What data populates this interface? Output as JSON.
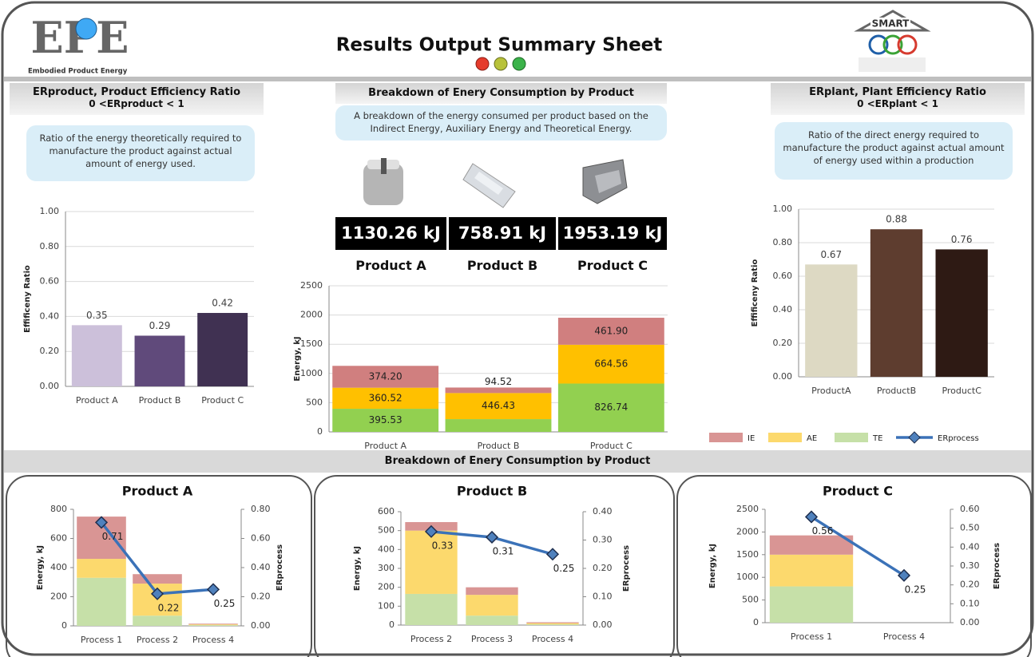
{
  "header": {
    "title": "Results Output Summary Sheet",
    "logo_left": "EPE",
    "logo_left_caption": "Embodied Product Energy",
    "logo_right": "SMART"
  },
  "panels": {
    "erproduct": {
      "heading": "ERproduct, Product Efficiency Ratio",
      "range": "0 <ERproduct < 1",
      "description": "Ratio of the energy theoretically required to manufacture the product against actual amount of energy used."
    },
    "breakdown": {
      "heading": "Breakdown of Enery Consumption by Product",
      "description": "A breakdown of the energy consumed per product based on the Indirect Energy, Auxiliary Energy and Theoretical Energy.",
      "totals": [
        {
          "label": "1130.26 kJ",
          "product": "Product A"
        },
        {
          "label": "758.91 kJ",
          "product": "Product B"
        },
        {
          "label": "1953.19 kJ",
          "product": "Product C"
        }
      ]
    },
    "erplant": {
      "heading": "ERplant, Plant Efficiency Ratio",
      "range": "0 <ERplant < 1",
      "description": "Ratio of the direct energy required to manufacture the product against actual amount of energy used within a production"
    },
    "bottom_heading": "Breakdown of Enery Consumption by Product"
  },
  "chart_data": [
    {
      "type": "bar",
      "y_label": "Effificeny Ratio",
      "categories": [
        "Product A",
        "Product B",
        "Product C"
      ],
      "values": [
        0.35,
        0.29,
        0.42
      ],
      "colors": [
        "#ccc0da",
        "#604a7b",
        "#403152"
      ],
      "grid": true,
      "ylim": [
        0,
        1
      ],
      "yticks": [
        {
          "value": 0,
          "label": "0.00"
        },
        {
          "value": 0.2,
          "label": "0.20"
        },
        {
          "value": 0.4,
          "label": "0.40"
        },
        {
          "value": 0.6,
          "label": "0.60"
        },
        {
          "value": 0.8,
          "label": "0.80"
        },
        {
          "value": 1,
          "label": "1.00"
        }
      ]
    },
    {
      "type": "stacked_bar",
      "y_label": "Energy, kJ",
      "categories": [
        "Product A",
        "Product B",
        "Product C"
      ],
      "grid": true,
      "ylim": [
        0,
        2500
      ],
      "yticks": [
        0,
        500,
        1000,
        1500,
        2000,
        2500
      ],
      "series": [
        {
          "name": "TE",
          "color": "#92d050",
          "values": [
            395.53,
            217.96,
            826.74
          ]
        },
        {
          "name": "AE",
          "color": "#ffc000",
          "values": [
            360.52,
            446.43,
            664.56
          ]
        },
        {
          "name": "IE",
          "color": "#d07f7f",
          "values": [
            374.2,
            94.52,
            461.9
          ],
          "value_labels": [
            "374.20",
            "94.52",
            "461.90"
          ]
        }
      ]
    },
    {
      "type": "bar",
      "y_label": "Effificeny Ratio",
      "categories": [
        "ProductA",
        "ProductB",
        "ProductC"
      ],
      "values": [
        0.67,
        0.88,
        0.76
      ],
      "colors": [
        "#ddd9c3",
        "#5e3d2f",
        "#2e1a14"
      ],
      "grid": true,
      "ylim": [
        0,
        1
      ],
      "yticks": [
        {
          "value": 0,
          "label": "0.00"
        },
        {
          "value": 0.2,
          "label": "0.20"
        },
        {
          "value": 0.4,
          "label": "0.40"
        },
        {
          "value": 0.6,
          "label": "0.60"
        },
        {
          "value": 0.8,
          "label": "0.80"
        },
        {
          "value": 1,
          "label": "1.00"
        }
      ]
    },
    {
      "type": "combo",
      "title": "Product A",
      "y_label": "Energy, kJ",
      "y2_label": "ERprocess",
      "categories": [
        "Process 1",
        "Process 2",
        "Process 4"
      ],
      "grid": false,
      "ylim": [
        0,
        800
      ],
      "yticks": [
        0,
        200,
        400,
        600,
        800
      ],
      "y2lim": [
        0,
        0.8
      ],
      "y2ticks": [
        {
          "value": 0,
          "label": "0.00"
        },
        {
          "value": 0.2,
          "label": "0.20"
        },
        {
          "value": 0.4,
          "label": "0.40"
        },
        {
          "value": 0.6,
          "label": "0.60"
        },
        {
          "value": 0.8,
          "label": "0.80"
        }
      ],
      "series": [
        {
          "name": "TE",
          "color": "#c6e0a8",
          "values": [
            330,
            70,
            5
          ]
        },
        {
          "name": "AE",
          "color": "#fcd96d",
          "values": [
            130,
            220,
            5
          ]
        },
        {
          "name": "IE",
          "color": "#d99594",
          "values": [
            290,
            65,
            5
          ]
        },
        {
          "name": "ERprocess",
          "color": "#3b72b8",
          "axis": "y2",
          "values": [
            0.71,
            0.22,
            0.25
          ]
        }
      ]
    },
    {
      "type": "combo",
      "title": "Product B",
      "y_label": "Energy, kJ",
      "y2_label": "ERprocess",
      "categories": [
        "Process 2",
        "Process 3",
        "Process 4"
      ],
      "grid": false,
      "ylim": [
        0,
        600
      ],
      "yticks": [
        0,
        100,
        200,
        300,
        400,
        500,
        600
      ],
      "y2lim": [
        0,
        0.4
      ],
      "y2ticks": [
        {
          "value": 0,
          "label": "0.00"
        },
        {
          "value": 0.1,
          "label": "0.10"
        },
        {
          "value": 0.2,
          "label": "0.20"
        },
        {
          "value": 0.3,
          "label": "0.30"
        },
        {
          "value": 0.4,
          "label": "0.40"
        }
      ],
      "series": [
        {
          "name": "TE",
          "color": "#c6e0a8",
          "values": [
            165,
            50,
            4
          ]
        },
        {
          "name": "AE",
          "color": "#fcd96d",
          "values": [
            335,
            110,
            6
          ]
        },
        {
          "name": "IE",
          "color": "#d99594",
          "values": [
            45,
            40,
            5
          ]
        },
        {
          "name": "ERprocess",
          "color": "#3b72b8",
          "axis": "y2",
          "values": [
            0.33,
            0.31,
            0.25
          ]
        }
      ]
    },
    {
      "type": "combo",
      "title": "Product C",
      "y_label": "Energy, kJ",
      "y2_label": "ERprocess",
      "categories": [
        "Process 1",
        "Process 4"
      ],
      "grid": false,
      "ylim": [
        0,
        2500
      ],
      "yticks": [
        0,
        500,
        1000,
        1500,
        2000,
        2500
      ],
      "y2lim": [
        0,
        0.6
      ],
      "y2ticks": [
        {
          "value": 0,
          "label": "0.00"
        },
        {
          "value": 0.1,
          "label": "0.10"
        },
        {
          "value": 0.2,
          "label": "0.20"
        },
        {
          "value": 0.3,
          "label": "0.30"
        },
        {
          "value": 0.4,
          "label": "0.40"
        },
        {
          "value": 0.5,
          "label": "0.50"
        },
        {
          "value": 0.6,
          "label": "0.60"
        }
      ],
      "series": [
        {
          "name": "TE",
          "color": "#c6e0a8",
          "values": [
            800,
            0
          ]
        },
        {
          "name": "AE",
          "color": "#fcd96d",
          "values": [
            700,
            0
          ]
        },
        {
          "name": "IE",
          "color": "#d99594",
          "values": [
            425,
            0
          ]
        },
        {
          "name": "ERprocess",
          "color": "#3b72b8",
          "axis": "y2",
          "values": [
            0.56,
            0.25
          ]
        }
      ]
    }
  ]
}
